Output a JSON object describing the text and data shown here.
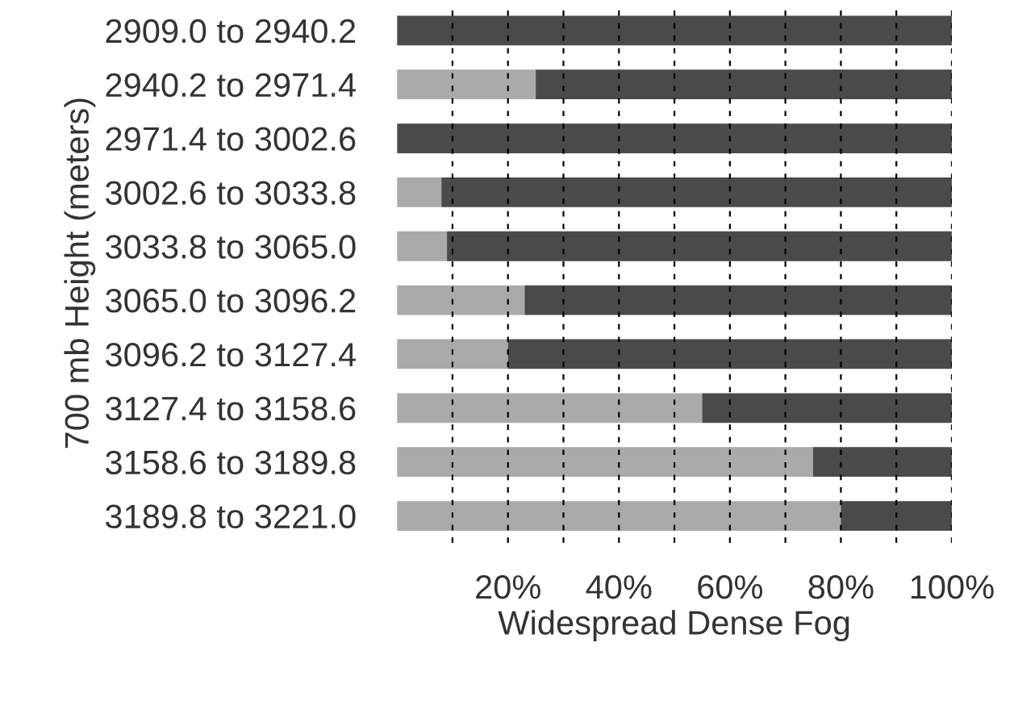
{
  "chart_data": {
    "type": "bar",
    "orientation": "horizontal",
    "stacked": true,
    "xlabel": "Widespread Dense Fog",
    "ylabel": "700 mb Height (meters)",
    "categories": [
      "2909.0 to 2940.2",
      "2940.2 to 2971.4",
      "2971.4 to 3002.6",
      "3002.6 to 3033.8",
      "3033.8 to 3065.0",
      "3065.0 to 3096.2",
      "3096.2 to 3127.4",
      "3127.4 to 3158.6",
      "3158.6 to 3189.8",
      "3189.8 to 3221.0"
    ],
    "series": [
      {
        "color": "#aaaaaa",
        "values": [
          0,
          25,
          0,
          8,
          9,
          23,
          20,
          55,
          75,
          80
        ]
      },
      {
        "color": "#4a4a4a",
        "values": [
          100,
          75,
          100,
          92,
          91,
          77,
          80,
          45,
          25,
          20
        ]
      }
    ],
    "xlim": [
      0,
      100
    ],
    "xticks": [
      {
        "value": 10,
        "label": null
      },
      {
        "value": 20,
        "label": "20%"
      },
      {
        "value": 30,
        "label": null
      },
      {
        "value": 40,
        "label": "40%"
      },
      {
        "value": 50,
        "label": null
      },
      {
        "value": 60,
        "label": "60%"
      },
      {
        "value": 70,
        "label": null
      },
      {
        "value": 80,
        "label": "80%"
      },
      {
        "value": 90,
        "label": null
      },
      {
        "value": 100,
        "label": "100%"
      }
    ],
    "grid": "x",
    "legend": false
  }
}
